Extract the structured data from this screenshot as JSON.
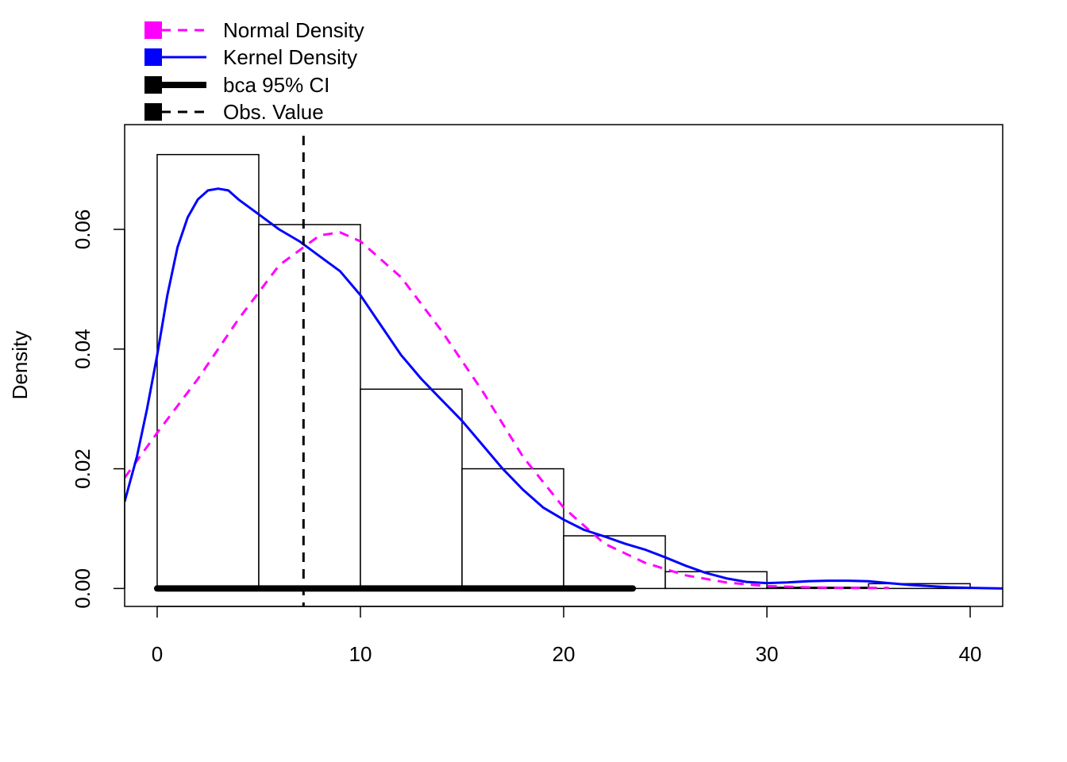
{
  "chart_data": {
    "type": "bar",
    "xlabel": "",
    "ylabel": "Density",
    "xlim": [
      -1.6,
      41.6
    ],
    "ylim": [
      -0.003,
      0.0775
    ],
    "x_ticks": [
      "0",
      "10",
      "20",
      "30",
      "40"
    ],
    "x_tick_values": [
      0,
      10,
      20,
      30,
      40
    ],
    "y_ticks": [
      "0.00",
      "0.02",
      "0.04",
      "0.06"
    ],
    "y_tick_values": [
      0,
      0.02,
      0.04,
      0.06
    ],
    "histogram": {
      "bins": [
        [
          0,
          5
        ],
        [
          5,
          10
        ],
        [
          10,
          15
        ],
        [
          15,
          20
        ],
        [
          20,
          25
        ],
        [
          25,
          30
        ],
        [
          30,
          35
        ],
        [
          35,
          40
        ]
      ],
      "density": [
        0.0725,
        0.0608,
        0.0333,
        0.02,
        0.0088,
        0.0028,
        0.0002,
        0.0008
      ],
      "fill": "#ffffff",
      "stroke": "#000000"
    },
    "series": [
      {
        "name": "Normal Density",
        "color": "#ff00ff",
        "style": "dashed",
        "x": [
          -1.6,
          0,
          2,
          4,
          6,
          8,
          9,
          10,
          12,
          14,
          16,
          18,
          20,
          22,
          24,
          26,
          28,
          30,
          32,
          34,
          36
        ],
        "y": [
          0.0185,
          0.026,
          0.035,
          0.045,
          0.054,
          0.059,
          0.0595,
          0.058,
          0.052,
          0.043,
          0.033,
          0.022,
          0.0135,
          0.0075,
          0.0043,
          0.0022,
          0.001,
          0.0004,
          0.0002,
          0.0001,
          0.0001
        ]
      },
      {
        "name": "Kernel Density",
        "color": "#0000ff",
        "style": "solid",
        "x": [
          -1.6,
          -1,
          -0.5,
          0,
          0.5,
          1,
          1.5,
          2,
          2.5,
          3,
          3.5,
          4,
          5,
          6,
          7,
          8,
          9,
          10,
          11,
          12,
          13,
          14,
          15,
          16,
          17,
          18,
          19,
          20,
          21,
          22,
          23,
          24,
          25,
          26,
          27,
          28,
          29,
          30,
          31,
          32,
          33,
          34,
          35,
          36,
          37,
          38,
          39,
          40,
          41.6
        ],
        "y": [
          0.0145,
          0.022,
          0.03,
          0.039,
          0.049,
          0.057,
          0.062,
          0.065,
          0.0665,
          0.0668,
          0.0665,
          0.065,
          0.0625,
          0.06,
          0.058,
          0.0555,
          0.053,
          0.049,
          0.044,
          0.039,
          0.035,
          0.0315,
          0.028,
          0.024,
          0.02,
          0.0165,
          0.0135,
          0.0115,
          0.0098,
          0.0087,
          0.0075,
          0.0065,
          0.0052,
          0.0038,
          0.0026,
          0.0017,
          0.0011,
          0.0009,
          0.001,
          0.0012,
          0.0013,
          0.0013,
          0.0012,
          0.0009,
          0.0006,
          0.0004,
          0.0002,
          0.0001,
          0.0
        ]
      }
    ],
    "ci": {
      "name": "bca 95% CI",
      "lower": 0,
      "upper": 23.4,
      "color": "#000000"
    },
    "obs_value": {
      "name": "Obs. Value",
      "x": 7.2,
      "color": "#000000"
    },
    "legend": {
      "placement": "top-left-outside",
      "items": [
        {
          "label": "Normal Density",
          "color": "#ff00ff",
          "style": "dashed"
        },
        {
          "label": "Kernel Density",
          "color": "#0000ff",
          "style": "solid"
        },
        {
          "label": "bca 95% CI",
          "color": "#000000",
          "style": "thick"
        },
        {
          "label": "Obs. Value",
          "color": "#000000",
          "style": "dashed"
        }
      ]
    }
  }
}
